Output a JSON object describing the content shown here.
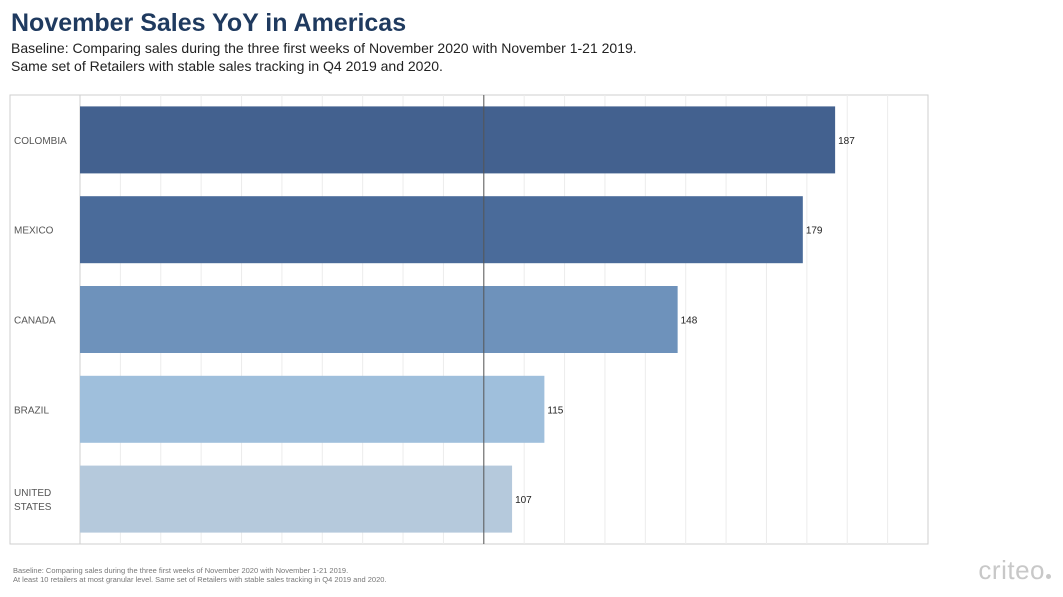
{
  "title": "November Sales YoY in Americas",
  "subtitle_lines": [
    "Baseline: Comparing sales during the three first weeks of November 2020 with November 1-21 2019.",
    "Same set of Retailers with stable sales tracking in Q4 2019 and 2020."
  ],
  "footnote_lines": [
    "Baseline: Comparing sales during the three first weeks of November 2020 with November 1-21 2019.",
    "At least 10 retailers at most granular level. Same set of Retailers with stable sales tracking in Q4 2019 and 2020."
  ],
  "brand": "criteo",
  "chart_data": {
    "type": "bar",
    "orientation": "horizontal",
    "categories": [
      "COLOMBIA",
      "MEXICO",
      "CANADA",
      "BRAZIL",
      "UNITED STATES"
    ],
    "values": [
      187,
      179,
      148,
      115,
      107
    ],
    "data_labels": [
      "187",
      "179",
      "148",
      "115",
      "107"
    ],
    "bar_colors": [
      "#43618f",
      "#4a6b9a",
      "#6e92bb",
      "#9fbfdc",
      "#b5c9dc"
    ],
    "baseline_value": 100,
    "xlim": [
      0,
      210
    ],
    "grid": true,
    "title": "November Sales YoY in Americas",
    "xlabel": "",
    "ylabel": ""
  }
}
